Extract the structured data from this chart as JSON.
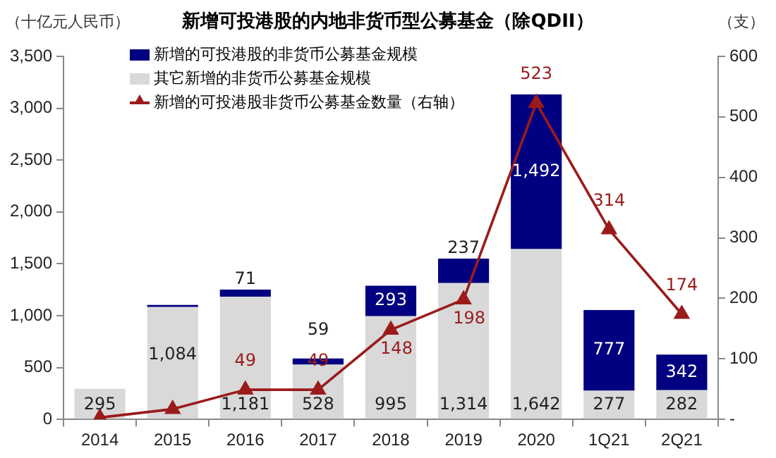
{
  "chart_data": {
    "type": "bar",
    "title": "新增可投港股的内地非货币型公募基金（除QDII）",
    "ylabel": "（十亿元人民币）",
    "y2label": "（支）",
    "categories": [
      "2014",
      "2015",
      "2016",
      "2017",
      "2018",
      "2019",
      "2020",
      "1Q21",
      "2Q21"
    ],
    "stacked": true,
    "legend": "top left",
    "grid": false,
    "ylim": [
      0,
      3500
    ],
    "yticks": [
      {
        "value": 0,
        "label": "0"
      },
      {
        "value": 500,
        "label": "500"
      },
      {
        "value": 1000,
        "label": "1,000"
      },
      {
        "value": 1500,
        "label": "1,500"
      },
      {
        "value": 2000,
        "label": "2,000"
      },
      {
        "value": 2500,
        "label": "2,500"
      },
      {
        "value": 3000,
        "label": "3,000"
      },
      {
        "value": 3500,
        "label": "3,500"
      }
    ],
    "y2lim": [
      0,
      600
    ],
    "y2ticks": [
      {
        "value": 0,
        "label": "-"
      },
      100,
      200,
      300,
      400,
      500,
      600
    ],
    "series": [
      {
        "name": "其它新增的非货币公募基金规模",
        "color": "#d9d9d9",
        "values": [
          295,
          1084,
          1181,
          528,
          995,
          1314,
          1642,
          277,
          282
        ],
        "value_labels": [
          "295",
          "1,084",
          "1,181",
          "528",
          "995",
          "1,314",
          "1,642",
          "277",
          "282"
        ]
      },
      {
        "name": "新增的可投港股的非货币公募基金规模",
        "color": "#000080",
        "values": [
          null,
          20,
          71,
          59,
          293,
          237,
          1492,
          777,
          342
        ],
        "value_labels": [
          null,
          null,
          "71",
          "59",
          "293",
          "237",
          "1,492",
          "777",
          "342"
        ]
      },
      {
        "name": "新增的可投港股非货币公募基金数量（右轴）",
        "type": "line",
        "axis": "y2",
        "marker": "triangle",
        "color": "#9b1b1b",
        "values": [
          3,
          17,
          49,
          49,
          148,
          198,
          523,
          314,
          174
        ],
        "value_labels": [
          null,
          null,
          "49",
          "49",
          "148",
          "198",
          "523",
          "314",
          "174"
        ]
      }
    ]
  }
}
